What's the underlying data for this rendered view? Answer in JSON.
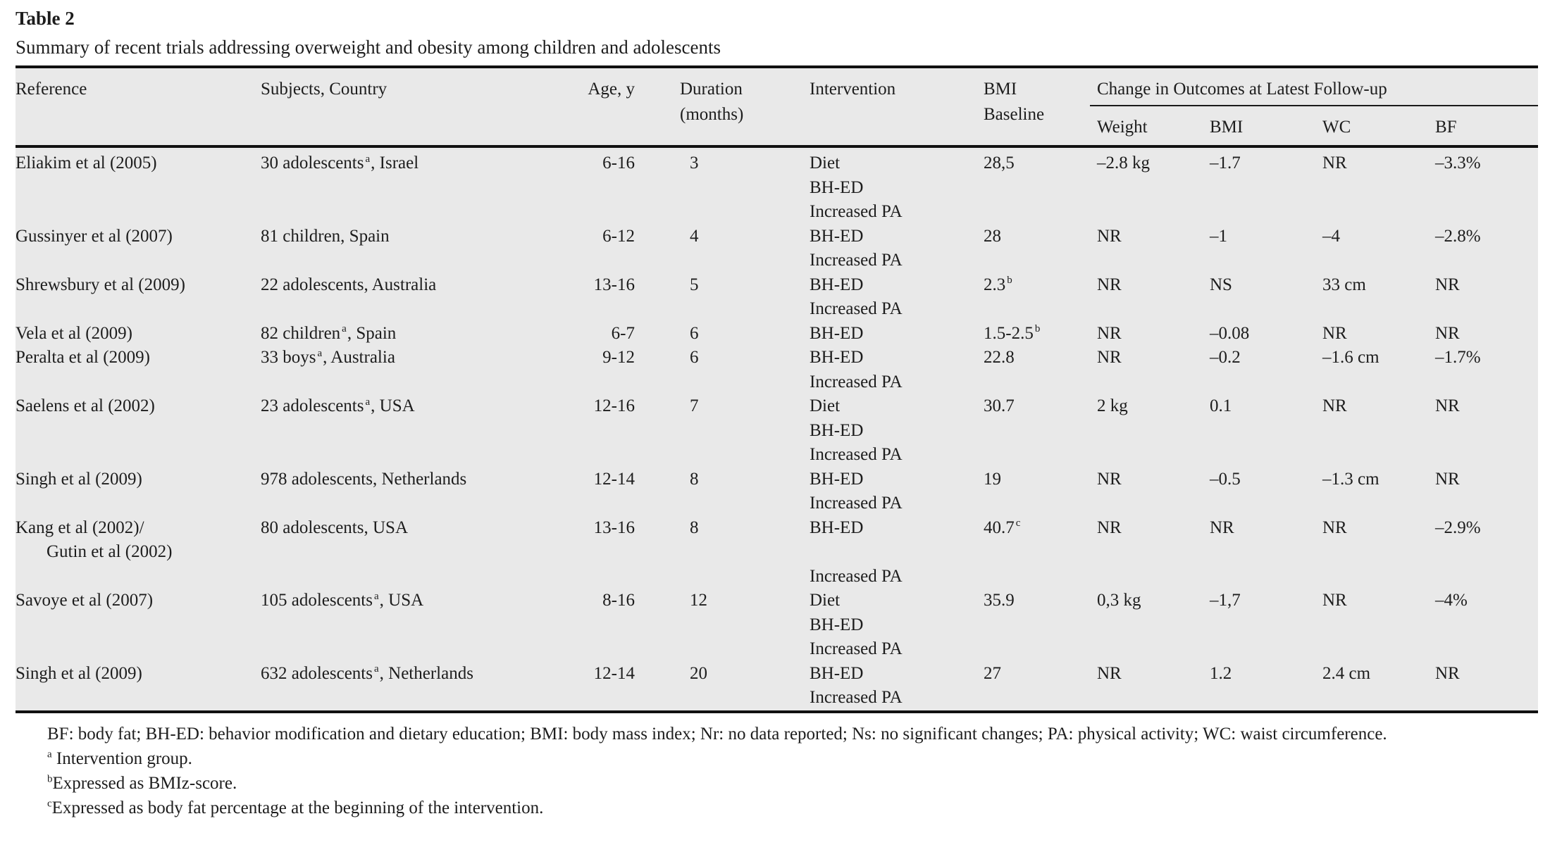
{
  "page": {
    "title": "Table 2",
    "caption": "Summary of recent trials addressing overweight and obesity among children and adolescents"
  },
  "colors": {
    "table_background": "#e9e9e9",
    "rule": "#111111",
    "text": "#1d1d1d"
  },
  "table": {
    "headers": {
      "reference": "Reference",
      "subjects": "Subjects, Country",
      "age": "Age, y",
      "duration_line1": "Duration",
      "duration_line2": "(months)",
      "intervention": "Intervention",
      "bmi_line1": "BMI",
      "bmi_line2": "Baseline",
      "outcomes_group": "Change in Outcomes at Latest Follow-up",
      "weight": "Weight",
      "bmi_change": "BMI",
      "wc": "WC",
      "bf": "BF"
    },
    "rows": [
      {
        "ref": [
          "Eliakim et al (2005)"
        ],
        "subjects_pre": "30 adolescents",
        "subjects_sup": "a",
        "subjects_post": ", Israel",
        "age": "6-16",
        "duration": "3",
        "interventions": [
          "Diet",
          "BH-ED",
          "Increased PA"
        ],
        "bmi_baseline": "28,5",
        "bmi_baseline_sup": "",
        "weight": "–2.8 kg",
        "bmi": "–1.7",
        "wc": "NR",
        "bf": "–3.3%"
      },
      {
        "ref": [
          "Gussinyer et al (2007)"
        ],
        "subjects_pre": "81 children, Spain",
        "subjects_sup": "",
        "subjects_post": "",
        "age": "6-12",
        "duration": "4",
        "interventions": [
          "BH-ED",
          "Increased PA"
        ],
        "bmi_baseline": "28",
        "bmi_baseline_sup": "",
        "weight": "NR",
        "bmi": "–1",
        "wc": "–4",
        "bf": "–2.8%"
      },
      {
        "ref": [
          "Shrewsbury et al (2009)"
        ],
        "subjects_pre": "22 adolescents, Australia",
        "subjects_sup": "",
        "subjects_post": "",
        "age": "13-16",
        "duration": "5",
        "interventions": [
          "BH-ED",
          "Increased PA"
        ],
        "bmi_baseline": "2.3",
        "bmi_baseline_sup": "b",
        "weight": "NR",
        "bmi": "NS",
        "wc": "33 cm",
        "bf": "NR"
      },
      {
        "ref": [
          "Vela et al (2009)"
        ],
        "subjects_pre": "82 children",
        "subjects_sup": "a",
        "subjects_post": ", Spain",
        "age": "6-7",
        "duration": "6",
        "interventions": [
          "BH-ED"
        ],
        "bmi_baseline": "1.5-2.5",
        "bmi_baseline_sup": "b",
        "weight": "NR",
        "bmi": "–0.08",
        "wc": "NR",
        "bf": "NR"
      },
      {
        "ref": [
          "Peralta et al (2009)"
        ],
        "subjects_pre": "33 boys",
        "subjects_sup": "a",
        "subjects_post": ", Australia",
        "age": "9-12",
        "duration": "6",
        "interventions": [
          "BH-ED",
          "Increased PA"
        ],
        "bmi_baseline": "22.8",
        "bmi_baseline_sup": "",
        "weight": "NR",
        "bmi": "–0.2",
        "wc": "–1.6 cm",
        "bf": "–1.7%"
      },
      {
        "ref": [
          "Saelens et al (2002)"
        ],
        "subjects_pre": "23 adolescents",
        "subjects_sup": "a",
        "subjects_post": ", USA",
        "age": "12-16",
        "duration": "7",
        "interventions": [
          "Diet",
          "BH-ED",
          "Increased PA"
        ],
        "bmi_baseline": "30.7",
        "bmi_baseline_sup": "",
        "weight": "2 kg",
        "bmi": "0.1",
        "wc": "NR",
        "bf": "NR"
      },
      {
        "ref": [
          "Singh et al (2009)"
        ],
        "subjects_pre": "978 adolescents, Netherlands",
        "subjects_sup": "",
        "subjects_post": "",
        "age": "12-14",
        "duration": "8",
        "interventions": [
          "BH-ED",
          "Increased PA"
        ],
        "bmi_baseline": "19",
        "bmi_baseline_sup": "",
        "weight": "NR",
        "bmi": "–0.5",
        "wc": "–1.3 cm",
        "bf": "NR"
      },
      {
        "ref": [
          "Kang et al (2002)/",
          "Gutin et al (2002)"
        ],
        "subjects_pre": "80 adolescents, USA",
        "subjects_sup": "",
        "subjects_post": "",
        "age": "13-16",
        "duration": "8",
        "interventions": [
          "BH-ED",
          "",
          "Increased PA"
        ],
        "bmi_baseline": "40.7",
        "bmi_baseline_sup": "c",
        "weight": "NR",
        "bmi": "NR",
        "wc": "NR",
        "bf": "–2.9%"
      },
      {
        "ref": [
          "Savoye et al (2007)"
        ],
        "subjects_pre": "105 adolescents",
        "subjects_sup": "a",
        "subjects_post": ", USA",
        "age": "8-16",
        "duration": "12",
        "interventions": [
          "Diet",
          "BH-ED",
          "Increased PA"
        ],
        "bmi_baseline": "35.9",
        "bmi_baseline_sup": "",
        "weight": "0,3 kg",
        "bmi": "–1,7",
        "wc": "NR",
        "bf": "–4%"
      },
      {
        "ref": [
          "Singh et al (2009)"
        ],
        "subjects_pre": "632 adolescents",
        "subjects_sup": "a",
        "subjects_post": ", Netherlands",
        "age": "12-14",
        "duration": "20",
        "interventions": [
          "BH-ED",
          "Increased PA"
        ],
        "bmi_baseline": "27",
        "bmi_baseline_sup": "",
        "weight": "NR",
        "bmi": "1.2",
        "wc": "2.4 cm",
        "bf": "NR"
      }
    ]
  },
  "footnotes": {
    "abbreviations": "BF: body fat; BH-ED: behavior modification and dietary education; BMI: body mass index; Nr: no data reported; Ns: no significant changes; PA: physical activity; WC: waist circumference.",
    "a_marker": "a",
    "a_text": " Intervention group.",
    "b_marker": "b",
    "b_text": "Expressed as BMIz-score.",
    "c_marker": "c",
    "c_text": "Expressed as body fat percentage at the beginning of the intervention."
  }
}
